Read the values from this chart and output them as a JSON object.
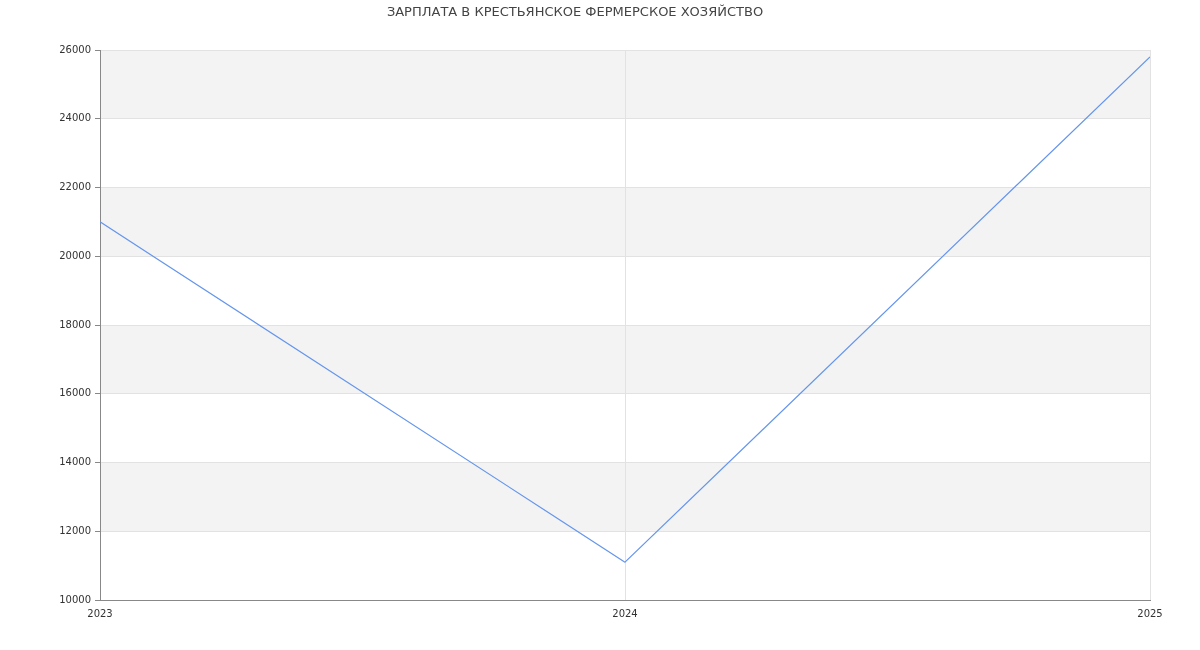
{
  "chart_data": {
    "type": "line",
    "title": "ЗАРПЛАТА В КРЕСТЬЯНСКОЕ ФЕРМЕРСКОЕ ХОЗЯЙСТВО",
    "x": [
      2023,
      2024,
      2025
    ],
    "series": [
      {
        "color": "#6495ed",
        "values": [
          21000,
          11100,
          25800
        ]
      }
    ],
    "xlim": [
      2023,
      2025
    ],
    "xticks": [
      2023,
      2024,
      2025
    ],
    "ylim": [
      10000,
      26000
    ],
    "yticks": [
      10000,
      12000,
      14000,
      16000,
      18000,
      20000,
      22000,
      24000,
      26000
    ],
    "grid": true
  }
}
